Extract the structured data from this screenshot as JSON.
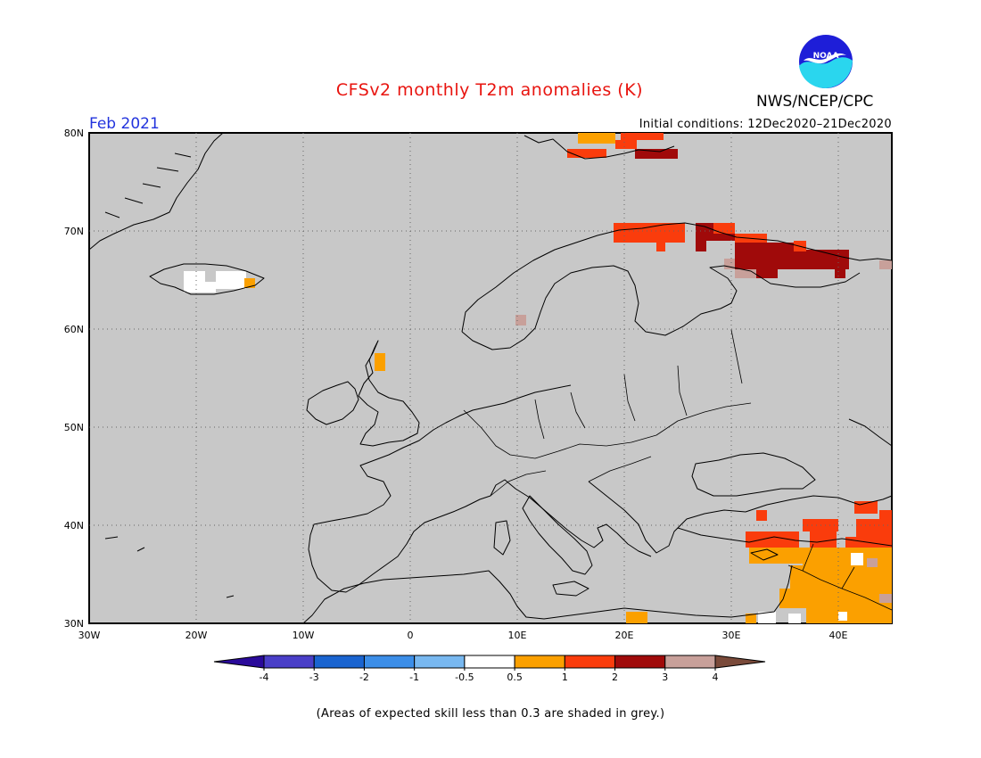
{
  "header": {
    "title": "CFSv2 monthly T2m anomalies (K)",
    "agency": "NWS/NCEP/CPC",
    "month": "Feb 2021",
    "initial_conditions": "Initial conditions: 12Dec2020–21Dec2020",
    "logo_text": "NOAA"
  },
  "map": {
    "lat_ticks": [
      "80N",
      "70N",
      "60N",
      "50N",
      "40N",
      "30N"
    ],
    "lon_ticks": [
      "30W",
      "20W",
      "10W",
      "0",
      "10E",
      "20E",
      "30E",
      "40E"
    ],
    "background_color": "#c8c8c8",
    "region": "Europe and Middle East",
    "anomaly_areas": [
      {
        "place": "Svalbard",
        "categories": [
          "1 to 2",
          "2 to 3",
          "0.5 to 1"
        ]
      },
      {
        "place": "Northern Scandinavia",
        "categories": [
          "2 to 3",
          "1 to 2"
        ]
      },
      {
        "place": "Kola Peninsula / NW Russia",
        "categories": [
          "2 to 3",
          "3 to 4",
          "1 to 2"
        ]
      },
      {
        "place": "Iceland",
        "categories": [
          "-0.5 to 0.5",
          "0.5 to 1"
        ]
      },
      {
        "place": "Scotland",
        "categories": [
          "0.5 to 1"
        ]
      },
      {
        "place": "Turkey / Middle East",
        "categories": [
          "1 to 2",
          "0.5 to 1",
          "-0.5 to 0.5"
        ]
      }
    ]
  },
  "legend": {
    "labels": [
      "-4",
      "-3",
      "-2",
      "-1",
      "-0.5",
      "0.5",
      "1",
      "2",
      "3",
      "4"
    ],
    "colors": [
      "#2a0a9a",
      "#4a3fc8",
      "#1a64d0",
      "#3c8ee8",
      "#78b8f0",
      "#ffffff",
      "#fba000",
      "#fa3c0c",
      "#a00a0a",
      "#c8a09a",
      "#7a4a3a"
    ]
  },
  "footer": "(Areas of expected skill less than 0.3 are shaded in grey.)"
}
